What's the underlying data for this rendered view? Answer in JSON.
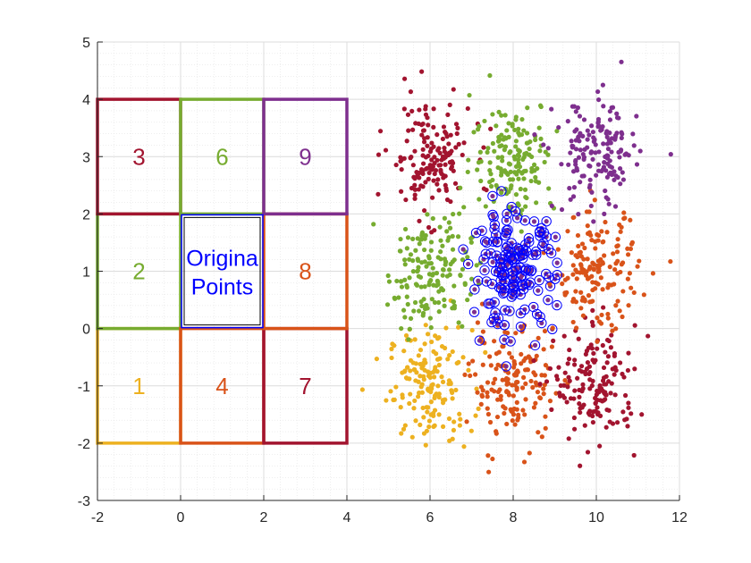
{
  "chart_data": {
    "type": "scatter",
    "xlim": [
      -2,
      12
    ],
    "ylim": [
      -3,
      5
    ],
    "x_ticks": [
      "-2",
      "0",
      "2",
      "4",
      "6",
      "8",
      "10",
      "12"
    ],
    "y_ticks": [
      "-3",
      "-2",
      "-1",
      "0",
      "1",
      "2",
      "3",
      "4",
      "5"
    ],
    "grid": true,
    "minor_grid": true,
    "colors": {
      "1": "#EDB120",
      "2": "#77AC30",
      "3": "#A2142F",
      "4": "#D95319",
      "6": "#77AC30",
      "7": "#A2142F",
      "8": "#D95319",
      "9": "#7E2F8E",
      "original": "#0000FF",
      "original_fill": "#7E2F8E"
    },
    "cells": [
      {
        "label": "1",
        "x0": -2,
        "x1": 0,
        "y0": -2,
        "y1": 0,
        "color": "#EDB120"
      },
      {
        "label": "2",
        "x0": -2,
        "x1": 0,
        "y0": 0,
        "y1": 2,
        "color": "#77AC30"
      },
      {
        "label": "3",
        "x0": -2,
        "x1": 0,
        "y0": 2,
        "y1": 4,
        "color": "#A2142F"
      },
      {
        "label": "4",
        "x0": 0,
        "x1": 2,
        "y0": -2,
        "y1": 0,
        "color": "#D95319"
      },
      {
        "label": "6",
        "x0": 0,
        "x1": 2,
        "y0": 2,
        "y1": 4,
        "color": "#77AC30"
      },
      {
        "label": "7",
        "x0": 2,
        "x1": 4,
        "y0": -2,
        "y1": 0,
        "color": "#A2142F"
      },
      {
        "label": "8",
        "x0": 2,
        "x1": 4,
        "y0": 0,
        "y1": 2,
        "color": "#D95319"
      },
      {
        "label": "9",
        "x0": 2,
        "x1": 4,
        "y0": 2,
        "y1": 4,
        "color": "#7E2F8E"
      }
    ],
    "original_box": {
      "x0": 0,
      "x1": 2,
      "y0": 0,
      "y1": 2,
      "color": "#0000FF"
    },
    "original_label": [
      "Origina",
      "Points"
    ],
    "clusters": [
      {
        "cell": "1",
        "center_x": 6.0,
        "center_y": -1.0,
        "spread": 0.5,
        "points": 160,
        "color": "#EDB120"
      },
      {
        "cell": "2",
        "center_x": 6.0,
        "center_y": 1.0,
        "spread": 0.5,
        "points": 160,
        "color": "#77AC30"
      },
      {
        "cell": "3",
        "center_x": 6.0,
        "center_y": 3.0,
        "spread": 0.5,
        "points": 160,
        "color": "#A2142F"
      },
      {
        "cell": "4",
        "center_x": 8.0,
        "center_y": -1.0,
        "spread": 0.5,
        "points": 160,
        "color": "#D95319"
      },
      {
        "cell": "original",
        "center_x": 8.0,
        "center_y": 1.0,
        "spread": 0.5,
        "points": 160,
        "color": "#7E2F8E"
      },
      {
        "cell": "6",
        "center_x": 8.0,
        "center_y": 3.0,
        "spread": 0.5,
        "points": 160,
        "color": "#77AC30"
      },
      {
        "cell": "7",
        "center_x": 10.0,
        "center_y": -1.0,
        "spread": 0.5,
        "points": 160,
        "color": "#A2142F"
      },
      {
        "cell": "8",
        "center_x": 10.0,
        "center_y": 1.0,
        "spread": 0.5,
        "points": 160,
        "color": "#D95319"
      },
      {
        "cell": "9",
        "center_x": 10.0,
        "center_y": 3.0,
        "spread": 0.5,
        "points": 160,
        "color": "#7E2F8E"
      }
    ]
  }
}
